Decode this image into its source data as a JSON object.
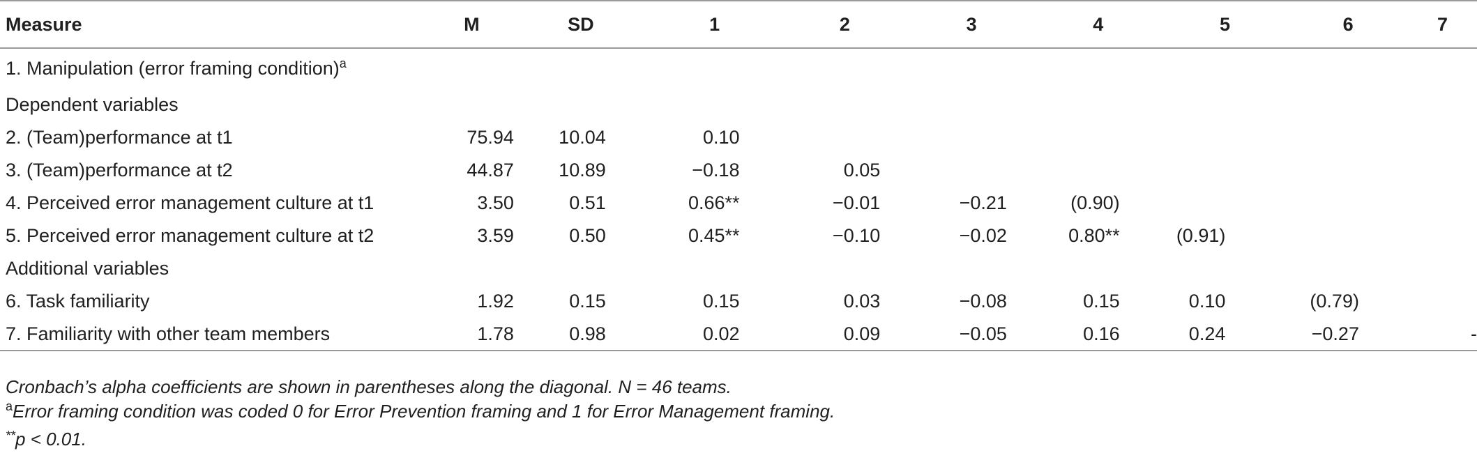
{
  "table": {
    "headers": [
      "Measure",
      "M",
      "SD",
      "1",
      "2",
      "3",
      "4",
      "5",
      "6",
      "7"
    ],
    "rows": [
      {
        "label": "1. Manipulation (error framing condition)",
        "sup": "a",
        "cells": [
          "",
          "",
          "",
          "",
          "",
          "",
          "",
          "",
          ""
        ]
      },
      {
        "label": "Dependent variables",
        "sup": "",
        "cells": [
          "",
          "",
          "",
          "",
          "",
          "",
          "",
          "",
          ""
        ]
      },
      {
        "label": "2. (Team)performance at t1",
        "sup": "",
        "cells": [
          "75.94",
          "10.04",
          "0.10",
          "",
          "",
          "",
          "",
          "",
          ""
        ]
      },
      {
        "label": "3. (Team)performance at t2",
        "sup": "",
        "cells": [
          "44.87",
          "10.89",
          "−0.18",
          "0.05",
          "",
          "",
          "",
          "",
          ""
        ]
      },
      {
        "label": "4. Perceived error management culture at t1",
        "sup": "",
        "cells": [
          "3.50",
          "0.51",
          "0.66**",
          "−0.01",
          "−0.21",
          "(0.90)",
          "",
          "",
          ""
        ]
      },
      {
        "label": "5. Perceived error management culture at t2",
        "sup": "",
        "cells": [
          "3.59",
          "0.50",
          "0.45**",
          "−0.10",
          "−0.02",
          "0.80**",
          "(0.91)",
          "",
          ""
        ]
      },
      {
        "label": "Additional variables",
        "sup": "",
        "cells": [
          "",
          "",
          "",
          "",
          "",
          "",
          "",
          "",
          ""
        ]
      },
      {
        "label": "6. Task familiarity",
        "sup": "",
        "cells": [
          "1.92",
          "0.15",
          "0.15",
          "0.03",
          "−0.08",
          "0.15",
          "0.10",
          "(0.79)",
          ""
        ]
      },
      {
        "label": "7. Familiarity with other team members",
        "sup": "",
        "cells": [
          "1.78",
          "0.98",
          "0.02",
          "0.09",
          "−0.05",
          "0.16",
          "0.24",
          "−0.27",
          "-"
        ]
      }
    ]
  },
  "notes": {
    "line1": "Cronbach’s alpha coefficients are shown in parentheses along the diagonal. N = 46 teams.",
    "line2_sup": "a",
    "line2": "Error framing condition was coded 0 for Error Prevention framing and 1 for Error Management framing.",
    "line3_stars": "**",
    "line3": "p < 0.01."
  }
}
